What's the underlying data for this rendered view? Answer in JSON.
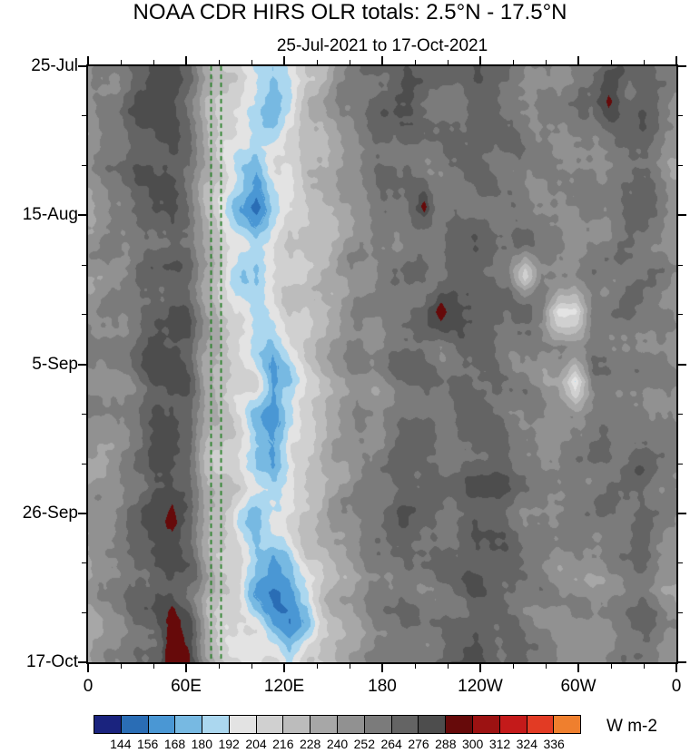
{
  "title": "NOAA CDR HIRS OLR totals: 2.5°N - 17.5°N",
  "subtitle": "25-Jul-2021 to 17-Oct-2021",
  "chart_data": {
    "type": "heatmap",
    "description": "Hovmoller (time-longitude) filled-contour plot of OLR totals averaged 2.5N-17.5N; time increases downward from 25-Jul-2021 to 17-Oct-2021, longitude spans 0 eastward through 180 back to 0.",
    "x_axis": {
      "tick_labels": [
        "0",
        "60E",
        "120E",
        "180",
        "120W",
        "60W",
        "0"
      ],
      "tick_positions_deg": [
        0,
        60,
        120,
        180,
        240,
        300,
        360
      ],
      "minor_step_deg": 20,
      "range_deg": [
        0,
        360
      ]
    },
    "y_axis": {
      "tick_labels": [
        "25-Jul",
        "15-Aug",
        "5-Sep",
        "26-Sep",
        "17-Oct"
      ],
      "tick_positions_day": [
        0,
        21,
        42,
        63,
        84
      ],
      "minor_step_day": 7,
      "range_day": [
        0,
        84
      ],
      "orientation": "time-increases-downward"
    },
    "reference_lines": [
      {
        "lon_deg": 75,
        "style": "dashed",
        "color": "#1e7d1e"
      },
      {
        "lon_deg": 81,
        "style": "dashed",
        "color": "#1e7d1e"
      }
    ],
    "colorbar": {
      "units_label": "W m-2",
      "tick_labels": [
        "144",
        "156",
        "168",
        "180",
        "192",
        "204",
        "216",
        "228",
        "240",
        "252",
        "264",
        "276",
        "288",
        "300",
        "312",
        "324",
        "336"
      ],
      "levels": [
        144,
        156,
        168,
        180,
        192,
        204,
        216,
        228,
        240,
        252,
        264,
        276,
        288,
        300,
        312,
        324,
        336
      ],
      "colors": [
        "#1a237e",
        "#2a6db5",
        "#4a97d4",
        "#77b9e2",
        "#abd7ef",
        "#e3e3e3",
        "#d0d0d0",
        "#bcbcbc",
        "#a7a7a7",
        "#919191",
        "#7b7b7b",
        "#646464",
        "#4d4d4d",
        "#660a0a",
        "#9c1212",
        "#c41a1a",
        "#e23b24",
        "#ef7f2e"
      ]
    },
    "grid": {
      "lon_deg": [
        0,
        10,
        20,
        30,
        40,
        50,
        60,
        70,
        80,
        90,
        100,
        110,
        120,
        130,
        140,
        150,
        160,
        170,
        180,
        190,
        200,
        210,
        220,
        230,
        240,
        250,
        260,
        270,
        280,
        290,
        300,
        310,
        320,
        330,
        340,
        350
      ],
      "time_day": [
        0,
        5,
        10,
        15,
        20,
        25,
        30,
        35,
        40,
        44,
        49,
        54,
        59,
        64,
        69,
        74,
        79,
        84
      ],
      "olr_values": [
        [
          245,
          250,
          255,
          268,
          278,
          280,
          270,
          235,
          215,
          205,
          195,
          185,
          200,
          215,
          225,
          240,
          250,
          255,
          262,
          268,
          265,
          262,
          268,
          272,
          268,
          262,
          258,
          252,
          248,
          250,
          255,
          258,
          262,
          265,
          258,
          250
        ],
        [
          245,
          250,
          255,
          268,
          278,
          280,
          270,
          235,
          215,
          205,
          200,
          175,
          190,
          215,
          225,
          240,
          250,
          255,
          262,
          268,
          265,
          262,
          268,
          272,
          268,
          262,
          258,
          252,
          248,
          250,
          255,
          292,
          262,
          265,
          258,
          250
        ],
        [
          245,
          250,
          255,
          268,
          278,
          280,
          270,
          235,
          215,
          195,
          185,
          180,
          210,
          215,
          225,
          240,
          250,
          255,
          262,
          268,
          265,
          262,
          268,
          272,
          268,
          262,
          258,
          252,
          248,
          250,
          255,
          258,
          262,
          265,
          258,
          250
        ],
        [
          245,
          250,
          255,
          268,
          278,
          280,
          270,
          235,
          215,
          190,
          180,
          205,
          195,
          215,
          225,
          240,
          250,
          255,
          262,
          268,
          265,
          262,
          268,
          272,
          268,
          262,
          258,
          252,
          248,
          250,
          255,
          258,
          262,
          265,
          258,
          250
        ],
        [
          245,
          250,
          255,
          268,
          285,
          285,
          270,
          235,
          215,
          175,
          150,
          185,
          210,
          215,
          225,
          240,
          250,
          255,
          262,
          268,
          295,
          262,
          268,
          272,
          268,
          262,
          258,
          252,
          248,
          250,
          255,
          258,
          262,
          265,
          258,
          250
        ],
        [
          245,
          250,
          255,
          268,
          278,
          280,
          270,
          235,
          215,
          205,
          185,
          190,
          210,
          215,
          225,
          240,
          250,
          255,
          262,
          268,
          265,
          262,
          268,
          272,
          268,
          262,
          258,
          252,
          248,
          250,
          255,
          258,
          262,
          265,
          258,
          250
        ],
        [
          245,
          250,
          255,
          268,
          278,
          280,
          270,
          235,
          215,
          185,
          180,
          205,
          210,
          215,
          225,
          240,
          250,
          255,
          262,
          268,
          265,
          262,
          268,
          272,
          268,
          262,
          200,
          252,
          248,
          250,
          255,
          258,
          262,
          265,
          258,
          250
        ],
        [
          245,
          250,
          255,
          268,
          278,
          280,
          270,
          235,
          215,
          205,
          175,
          185,
          210,
          215,
          225,
          240,
          250,
          255,
          262,
          268,
          265,
          295,
          268,
          272,
          268,
          262,
          258,
          252,
          195,
          205,
          255,
          258,
          262,
          265,
          258,
          250
        ],
        [
          245,
          250,
          255,
          268,
          278,
          280,
          270,
          235,
          215,
          205,
          180,
          170,
          190,
          215,
          225,
          240,
          250,
          255,
          262,
          268,
          265,
          262,
          268,
          272,
          268,
          262,
          258,
          252,
          248,
          250,
          255,
          258,
          262,
          265,
          258,
          250
        ],
        [
          245,
          250,
          255,
          268,
          278,
          280,
          270,
          235,
          215,
          205,
          200,
          165,
          180,
          215,
          225,
          240,
          250,
          255,
          262,
          268,
          265,
          262,
          268,
          272,
          268,
          262,
          258,
          252,
          248,
          200,
          255,
          258,
          262,
          265,
          258,
          250
        ],
        [
          245,
          250,
          255,
          268,
          278,
          280,
          270,
          235,
          215,
          205,
          170,
          160,
          185,
          215,
          225,
          240,
          250,
          255,
          262,
          268,
          265,
          262,
          268,
          272,
          268,
          262,
          258,
          252,
          248,
          250,
          255,
          258,
          262,
          265,
          258,
          250
        ],
        [
          245,
          250,
          255,
          268,
          278,
          280,
          270,
          235,
          215,
          205,
          180,
          175,
          210,
          215,
          225,
          240,
          250,
          255,
          262,
          268,
          265,
          262,
          268,
          272,
          268,
          262,
          258,
          252,
          248,
          250,
          255,
          258,
          262,
          265,
          258,
          250
        ],
        [
          245,
          250,
          255,
          268,
          278,
          280,
          270,
          235,
          215,
          205,
          185,
          180,
          190,
          215,
          225,
          240,
          250,
          255,
          262,
          268,
          265,
          262,
          268,
          272,
          268,
          262,
          258,
          252,
          248,
          250,
          255,
          258,
          262,
          265,
          258,
          250
        ],
        [
          245,
          250,
          255,
          268,
          278,
          292,
          270,
          235,
          215,
          180,
          170,
          205,
          210,
          215,
          225,
          240,
          250,
          255,
          262,
          268,
          265,
          262,
          268,
          272,
          268,
          262,
          258,
          252,
          248,
          250,
          255,
          258,
          262,
          265,
          258,
          250
        ],
        [
          245,
          250,
          255,
          268,
          278,
          280,
          270,
          235,
          215,
          205,
          175,
          165,
          180,
          215,
          225,
          240,
          250,
          255,
          262,
          268,
          265,
          262,
          268,
          272,
          268,
          262,
          258,
          252,
          248,
          250,
          255,
          258,
          262,
          265,
          258,
          250
        ],
        [
          245,
          250,
          255,
          268,
          278,
          280,
          270,
          235,
          215,
          205,
          165,
          150,
          160,
          180,
          225,
          240,
          250,
          255,
          262,
          268,
          265,
          262,
          268,
          272,
          268,
          262,
          258,
          252,
          248,
          250,
          255,
          258,
          262,
          265,
          258,
          250
        ],
        [
          245,
          250,
          255,
          268,
          278,
          295,
          285,
          235,
          215,
          205,
          205,
          170,
          160,
          175,
          225,
          240,
          250,
          255,
          262,
          268,
          265,
          262,
          268,
          272,
          268,
          262,
          258,
          252,
          248,
          250,
          255,
          258,
          262,
          265,
          258,
          250
        ],
        [
          245,
          250,
          255,
          268,
          278,
          300,
          292,
          235,
          215,
          205,
          205,
          205,
          185,
          215,
          225,
          240,
          250,
          255,
          262,
          268,
          265,
          262,
          268,
          272,
          268,
          262,
          258,
          252,
          248,
          250,
          255,
          258,
          262,
          265,
          258,
          250
        ]
      ]
    }
  }
}
